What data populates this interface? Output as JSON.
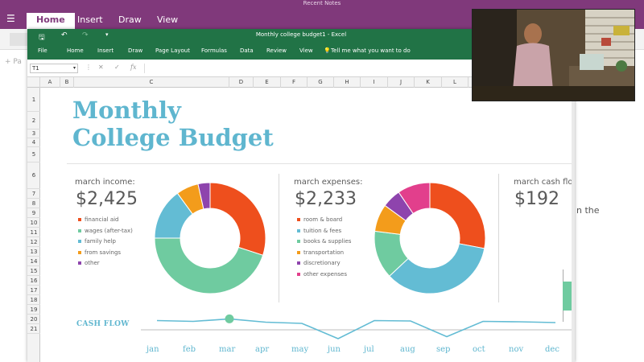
{
  "onenote": {
    "window_title": "Recent Notes",
    "tabs": [
      {
        "label": "Home",
        "active": true
      },
      {
        "label": "Insert",
        "active": false
      },
      {
        "label": "Draw",
        "active": false
      },
      {
        "label": "View",
        "active": false
      }
    ],
    "add_page": "+ Pa",
    "side_text": "n the",
    "accent": "#80397b"
  },
  "excel": {
    "doc_title": "Monthly college budget1  -  Excel",
    "menu": [
      "File",
      "Home",
      "Insert",
      "Draw",
      "Page Layout",
      "Formulas",
      "Data",
      "Review",
      "View"
    ],
    "tell_me": "Tell me what you want to do",
    "name_box": "T1",
    "accent": "#217346",
    "columns": [
      "A",
      "B",
      "C",
      "D",
      "E",
      "F",
      "G",
      "H",
      "I",
      "J",
      "K",
      "L"
    ],
    "rows": [
      "1",
      "2",
      "3",
      "4",
      "5",
      "6",
      "7",
      "8",
      "9",
      "10",
      "11",
      "12",
      "13",
      "14",
      "15",
      "16",
      "17",
      "18",
      "19",
      "20",
      "21"
    ]
  },
  "budget": {
    "title_line1": "Monthly",
    "title_line2": "College Budget",
    "income": {
      "label": "march income:",
      "amount": "$2,425",
      "legend": [
        {
          "name": "financial aid",
          "color": "#ee4f1d"
        },
        {
          "name": "wages (after-tax)",
          "color": "#6fcba0"
        },
        {
          "name": "family help",
          "color": "#63bcd4"
        },
        {
          "name": "from savings",
          "color": "#f39c1b"
        },
        {
          "name": "other",
          "color": "#8e44ad"
        }
      ]
    },
    "expenses": {
      "label": "march expenses:",
      "amount": "$2,233",
      "legend": [
        {
          "name": "room & board",
          "color": "#ee4f1d"
        },
        {
          "name": "tuition & fees",
          "color": "#63bcd4"
        },
        {
          "name": "books & supplies",
          "color": "#6fcba0"
        },
        {
          "name": "transportation",
          "color": "#f39c1b"
        },
        {
          "name": "discretionary",
          "color": "#8e44ad"
        },
        {
          "name": "other expenses",
          "color": "#e23f8c"
        }
      ]
    },
    "cashflow_summary": {
      "label": "march cash flow",
      "amount": "$192"
    },
    "cashflow_chart": {
      "label": "CASH FLOW",
      "months": [
        "jan",
        "feb",
        "mar",
        "apr",
        "may",
        "jun",
        "jul",
        "aug",
        "sep",
        "oct",
        "nov",
        "dec"
      ],
      "highlight_month": "mar"
    }
  },
  "chart_data": [
    {
      "type": "pie",
      "title": "march income:",
      "categories": [
        "financial aid",
        "wages (after-tax)",
        "family help",
        "from savings",
        "other"
      ],
      "values": [
        30,
        45,
        15,
        6.5,
        3.5
      ],
      "colors": [
        "#ee4f1d",
        "#6fcba0",
        "#63bcd4",
        "#f39c1b",
        "#8e44ad"
      ]
    },
    {
      "type": "pie",
      "title": "march expenses:",
      "categories": [
        "room & board",
        "tuition & fees",
        "books & supplies",
        "transportation",
        "discretionary",
        "other expenses"
      ],
      "values": [
        28,
        35,
        14,
        8,
        5.5,
        9.5
      ],
      "colors": [
        "#ee4f1d",
        "#63bcd4",
        "#6fcba0",
        "#f39c1b",
        "#8e44ad",
        "#e23f8c"
      ]
    },
    {
      "type": "line",
      "title": "CASH FLOW",
      "x": [
        "jan",
        "feb",
        "mar",
        "apr",
        "may",
        "jun",
        "jul",
        "aug",
        "sep",
        "oct",
        "nov",
        "dec"
      ],
      "series": [
        {
          "values": [
            150,
            130,
            192,
            110,
            80,
            -300,
            150,
            140,
            -250,
            130,
            120,
            100
          ]
        }
      ],
      "ylim": [
        -400,
        400
      ]
    }
  ]
}
